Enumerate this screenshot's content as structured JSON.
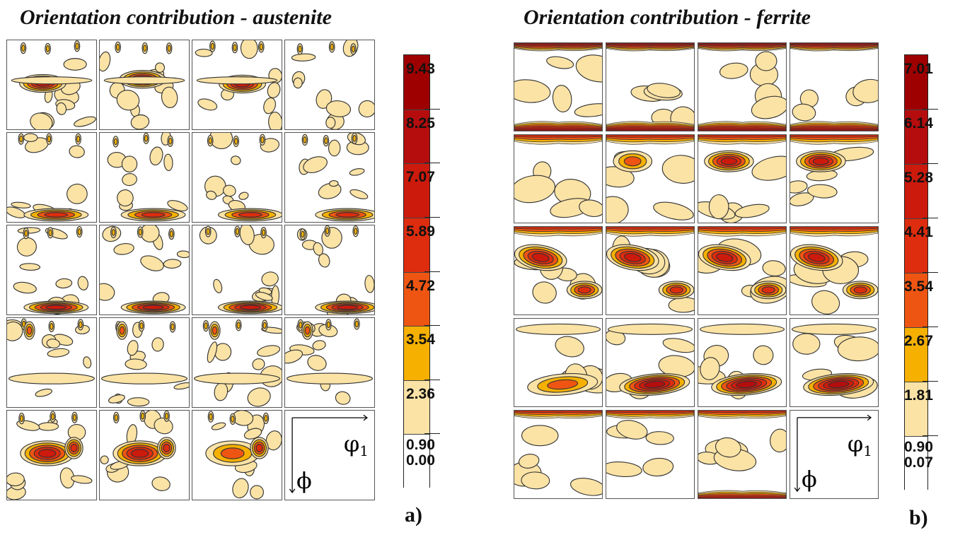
{
  "chart_data": [
    {
      "type": "heatmap",
      "title": "Orientation contribution - austenite",
      "panel_label": "a)",
      "grid": {
        "rows": 5,
        "cols": 4
      },
      "axes": {
        "horizontal": "φ1",
        "vertical": "ϕ"
      },
      "colorbar": {
        "levels": [
          {
            "value": "9.43",
            "color": "#9e0000"
          },
          {
            "value": "8.25",
            "color": "#b50d0d"
          },
          {
            "value": "7.07",
            "color": "#cc1a0c"
          },
          {
            "value": "5.89",
            "color": "#dd2c0e"
          },
          {
            "value": "4.72",
            "color": "#ef5512"
          },
          {
            "value": "3.54",
            "color": "#f5b000"
          },
          {
            "value": "2.36",
            "color": "#fbe3a6"
          },
          {
            "value": "0.90",
            "color": "#ffffff"
          },
          {
            "value": "0.00",
            "color": "#ffffff"
          }
        ]
      }
    },
    {
      "type": "heatmap",
      "title": "Orientation contribution - ferrite",
      "panel_label": "b)",
      "grid": {
        "rows": 5,
        "cols": 4
      },
      "axes": {
        "horizontal": "φ1",
        "vertical": "ϕ"
      },
      "colorbar": {
        "levels": [
          {
            "value": "7.01",
            "color": "#9e0000"
          },
          {
            "value": "6.14",
            "color": "#b50d0d"
          },
          {
            "value": "5.28",
            "color": "#cc1a0c"
          },
          {
            "value": "4.41",
            "color": "#dd2c0e"
          },
          {
            "value": "3.54",
            "color": "#ef5512"
          },
          {
            "value": "2.67",
            "color": "#f5b000"
          },
          {
            "value": "1.81",
            "color": "#fbe3a6"
          },
          {
            "value": "0.90",
            "color": "#ffffff"
          },
          {
            "value": "0.07",
            "color": "#ffffff"
          }
        ]
      }
    }
  ]
}
